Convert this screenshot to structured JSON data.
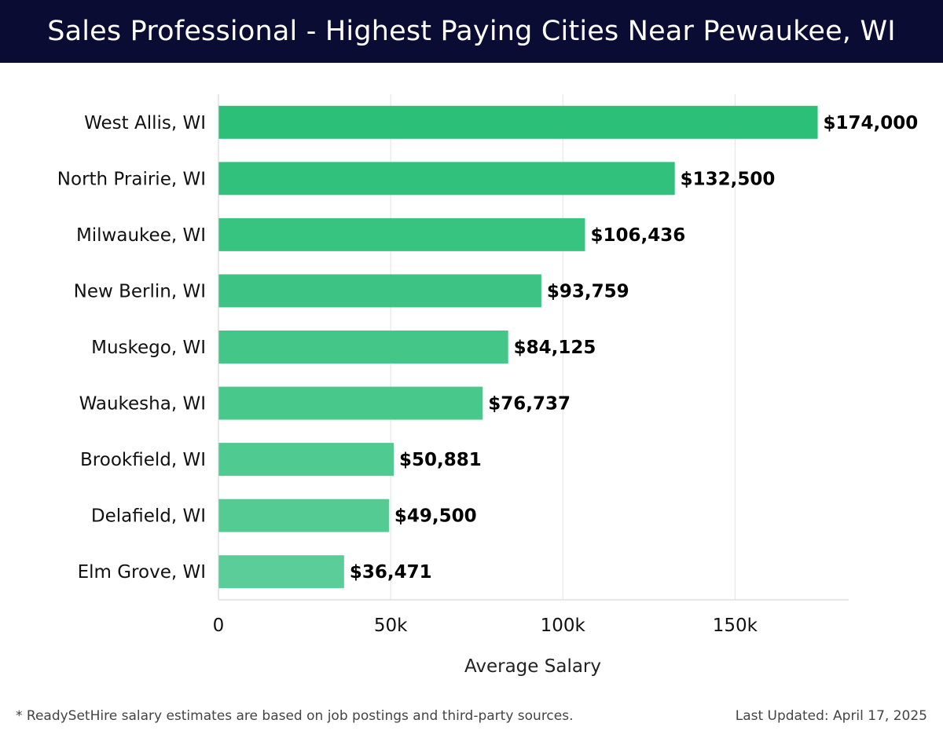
{
  "header": {
    "title": "Sales Professional - Highest Paying Cities Near Pewaukee, WI"
  },
  "chart_data": {
    "type": "bar",
    "orientation": "horizontal",
    "categories": [
      "West Allis, WI",
      "North Prairie, WI",
      "Milwaukee, WI",
      "New Berlin, WI",
      "Muskego, WI",
      "Waukesha, WI",
      "Brookfield, WI",
      "Delafield, WI",
      "Elm Grove, WI"
    ],
    "values": [
      174000,
      132500,
      106436,
      93759,
      84125,
      76737,
      50881,
      49500,
      36471
    ],
    "value_labels": [
      "$174,000",
      "$132,500",
      "$106,436",
      "$93,759",
      "$84,125",
      "$76,737",
      "$50,881",
      "$49,500",
      "$36,471"
    ],
    "xlabel": "Average Salary",
    "xlim": [
      0,
      183000
    ],
    "x_ticks": [
      0,
      50000,
      100000,
      150000
    ],
    "x_tick_labels": [
      "0",
      "50k",
      "100k",
      "150k"
    ],
    "grid": "vertical",
    "colors": {
      "bar_high": "#2bbf78",
      "bar_low": "#5bcd98",
      "header_bg": "#0a0c33"
    }
  },
  "footer": {
    "note": "* ReadySetHire salary estimates are based on job postings and third-party sources.",
    "updated": "Last Updated: April 17, 2025"
  }
}
